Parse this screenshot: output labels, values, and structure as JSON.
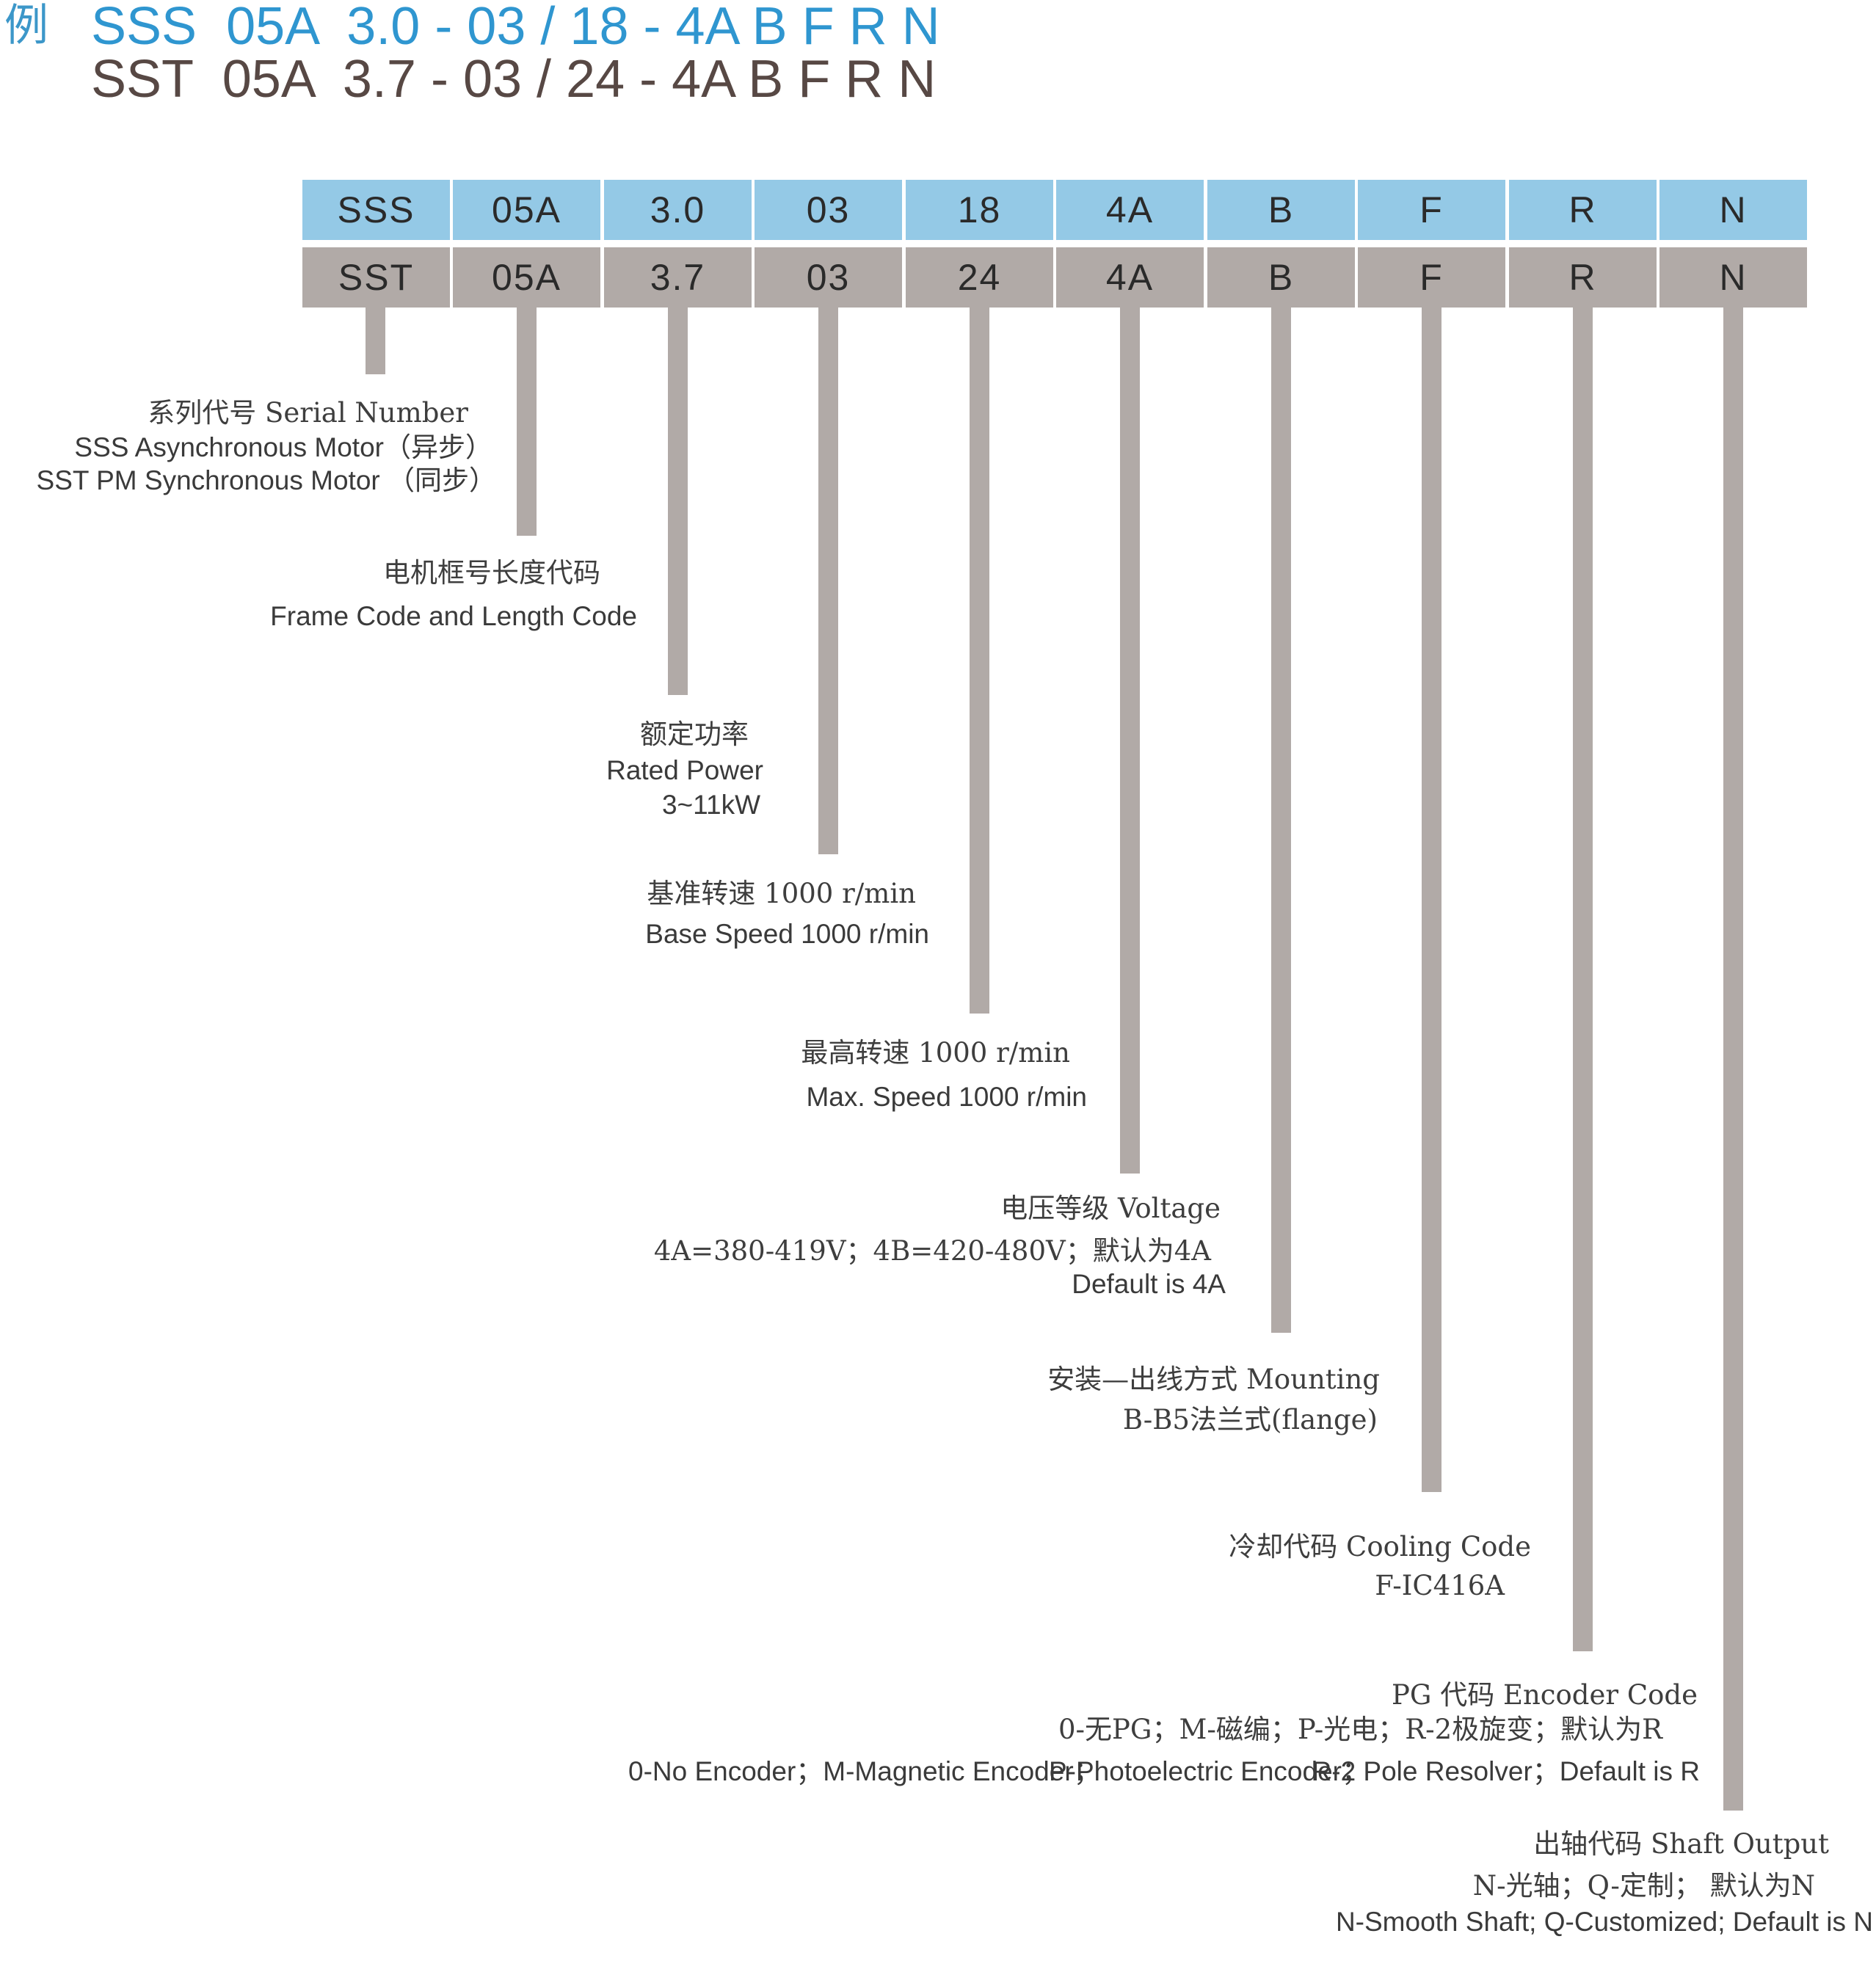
{
  "example_mark": "例",
  "code_line_1": "SSS  05A  3.0 - 03 / 18 - 4A B F R N",
  "code_line_2": "SST  05A  3.7 - 03 / 24 - 4A B F R N",
  "top_row": [
    "SSS",
    "05A",
    "3.0",
    "03",
    "18",
    "4A",
    "B",
    "F",
    "R",
    "N"
  ],
  "bottom_row": [
    "SST",
    "05A",
    "3.7",
    "03",
    "24",
    "4A",
    "B",
    "F",
    "R",
    "N"
  ],
  "labels": {
    "serial": {
      "line1": "系列代号 Serial Number",
      "line2": "SSS Asynchronous Motor（异步）",
      "line3": "SST PM Synchronous Motor （同步）"
    },
    "frame": {
      "line1": "电机框号长度代码",
      "line2": "Frame Code and Length Code"
    },
    "power": {
      "line1": "额定功率",
      "line2": "Rated Power",
      "line3": "3~11kW"
    },
    "base_speed": {
      "line1": "基准转速 1000 r/min",
      "line2": "Base Speed 1000 r/min"
    },
    "max_speed": {
      "line1": "最高转速 1000 r/min",
      "line2": "Max. Speed 1000 r/min"
    },
    "voltage": {
      "line1": "电压等级  Voltage",
      "line2": "4A=380-419V；4B=420-480V；默认为4A",
      "line3": "Default is 4A"
    },
    "mounting": {
      "line1": "安装—出线方式  Mounting",
      "line2": "B-B5法兰式(flange)"
    },
    "cooling": {
      "line1": "冷却代码 Cooling Code",
      "line2": "F-IC416A"
    },
    "encoder": {
      "line1": "PG 代码  Encoder Code",
      "line2": "0-无PG；M-磁编；P-光电；R-2极旋变；默认为R",
      "line3a": "0-No Encoder；M-Magnetic Encoder；",
      "line3b": "P-Photoelectric Encoder；",
      "line3c": "R-2 Pole Resolver；Default is R"
    },
    "shaft": {
      "line1": "出轴代码  Shaft Output",
      "line2": "N-光轴；Q-定制； 默认为N",
      "line3": "N-Smooth Shaft; Q-Customized; Default is N"
    }
  },
  "colors": {
    "blue_text": "#2f96d0",
    "dark_text": "#574844",
    "blue_cell": "#94c9e6",
    "gray_cell": "#b1aaa7"
  }
}
